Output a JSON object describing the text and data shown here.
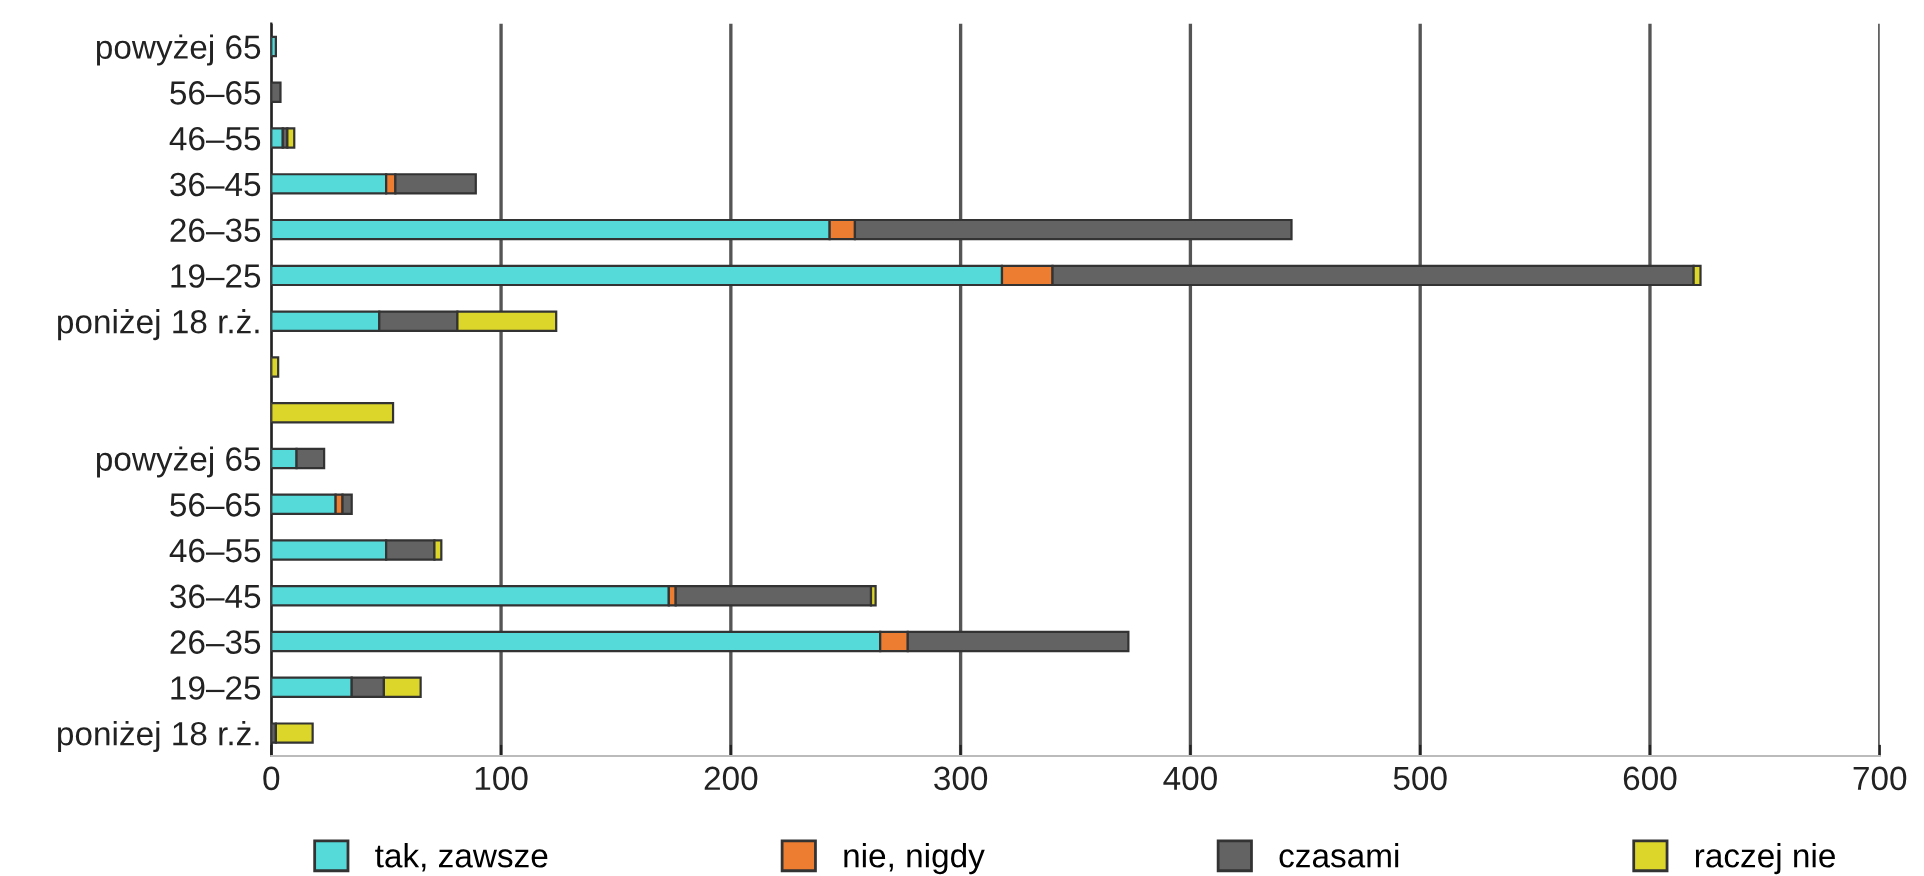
{
  "chart_data": {
    "type": "bar",
    "orientation": "horizontal",
    "stacked": true,
    "categories": [
      "powyżej 65",
      "56–65",
      "46–55",
      "36–45",
      "26–35",
      "19–25",
      "poniżej 18 r.ż.",
      null,
      null,
      "powyżej 65",
      "56–65",
      "46–55",
      "36–45",
      "26–35",
      "19–25",
      "poniżej 18 r.ż."
    ],
    "series": [
      {
        "name": "tak, zawsze",
        "color": "#55d9d9",
        "values": [
          2,
          0,
          5,
          50,
          243,
          318,
          47,
          0,
          0,
          11,
          28,
          50,
          173,
          265,
          35,
          0
        ]
      },
      {
        "name": "nie, nigdy",
        "color": "#ed7d31",
        "values": [
          0,
          0,
          0,
          4,
          11,
          22,
          0,
          0,
          0,
          0,
          3,
          0,
          3,
          12,
          0,
          0
        ]
      },
      {
        "name": "czasami",
        "color": "#636363",
        "values": [
          0,
          4,
          2,
          35,
          190,
          279,
          34,
          0,
          0,
          12,
          4,
          21,
          85,
          96,
          14,
          2
        ]
      },
      {
        "name": "raczej nie",
        "color": "#dcd62b",
        "values": [
          0,
          0,
          3,
          0,
          0,
          3,
          43,
          3,
          53,
          0,
          0,
          3,
          2,
          0,
          16,
          16
        ]
      }
    ],
    "xlim": [
      0,
      700
    ],
    "xticks": [
      0,
      100,
      200,
      300,
      400,
      500,
      600,
      700
    ],
    "grid": "x",
    "legend": "bottom"
  }
}
